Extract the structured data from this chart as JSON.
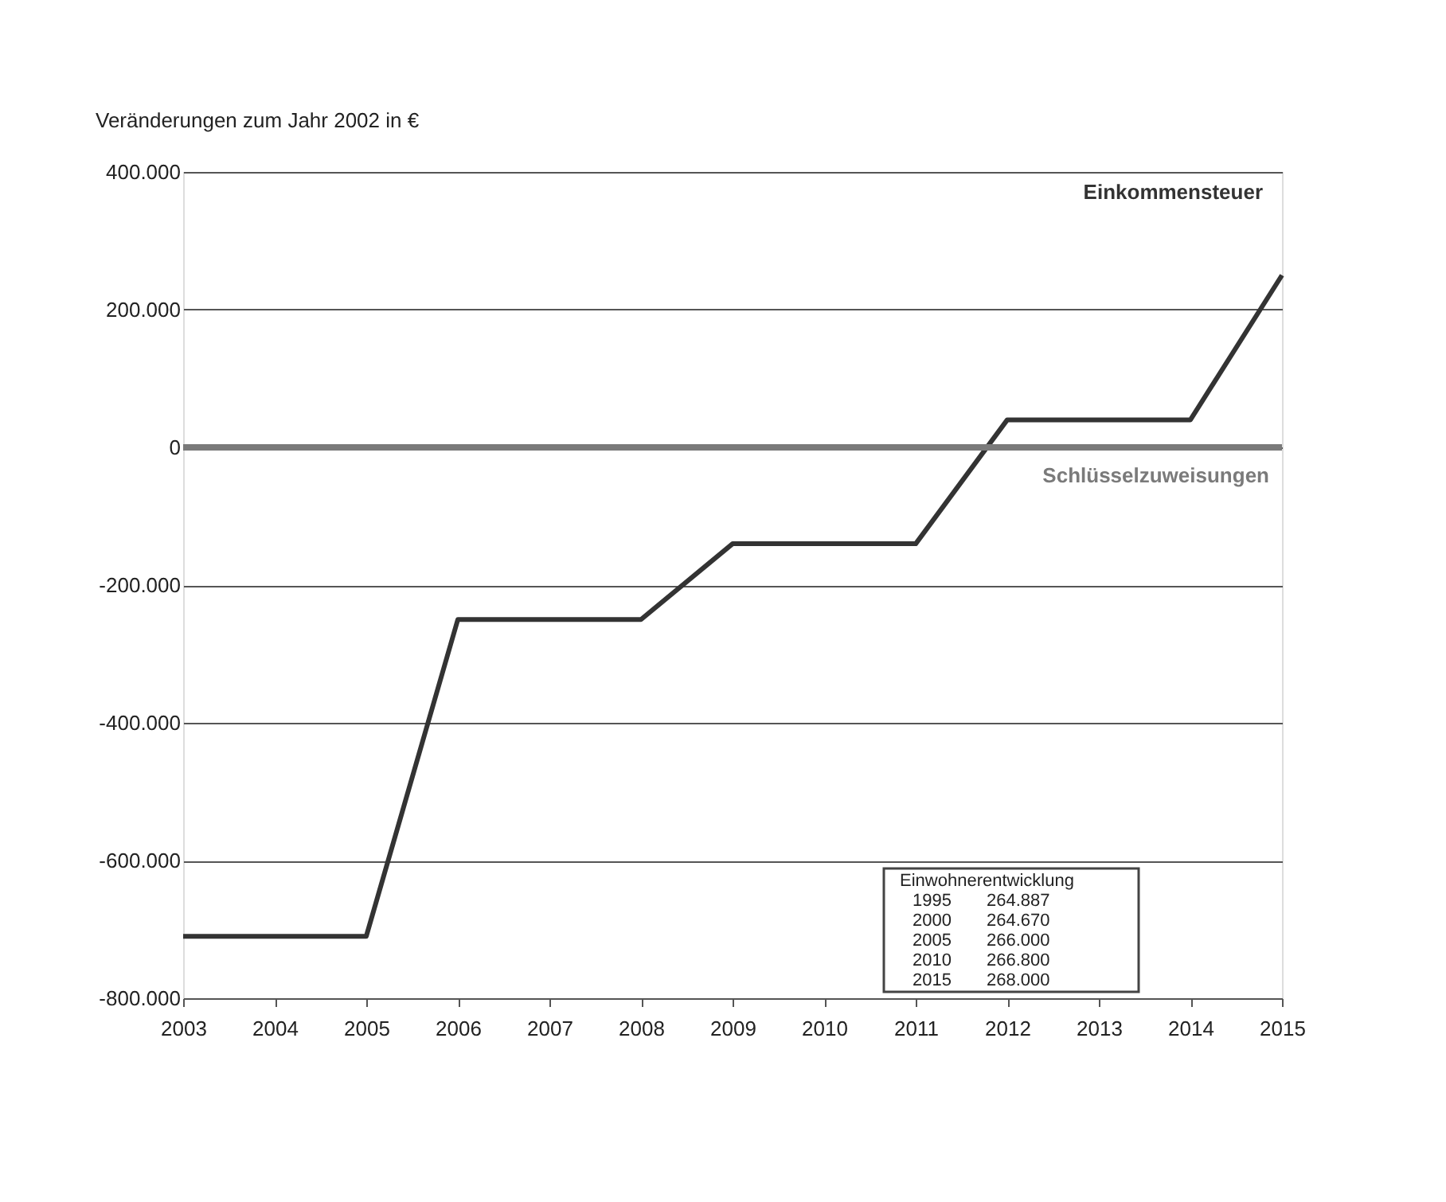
{
  "chart_data": {
    "type": "line",
    "ylabel": "Veränderungen zum Jahr 2002 in €",
    "categories": [
      "2003",
      "2004",
      "2005",
      "2006",
      "2007",
      "2008",
      "2009",
      "2010",
      "2011",
      "2012",
      "2013",
      "2014",
      "2015"
    ],
    "series": [
      {
        "name": "Einkommensteuer",
        "color": "#333333",
        "values": [
          -710000,
          -710000,
          -710000,
          -250000,
          -250000,
          -250000,
          -140000,
          -140000,
          -140000,
          40000,
          40000,
          40000,
          250000
        ]
      },
      {
        "name": "Schlüsselzuweisungen",
        "color": "#7a7a7a",
        "values": [
          0,
          0,
          0,
          0,
          0,
          0,
          0,
          0,
          0,
          0,
          0,
          0,
          0
        ]
      }
    ],
    "ylim": [
      -800000,
      400000
    ],
    "yticks": [
      {
        "value": -800000,
        "label": "-800.000"
      },
      {
        "value": -600000,
        "label": "-600.000"
      },
      {
        "value": -400000,
        "label": "-400.000"
      },
      {
        "value": -200000,
        "label": "-200.000"
      },
      {
        "value": 0,
        "label": "0"
      },
      {
        "value": 200000,
        "label": "200.000"
      },
      {
        "value": 400000,
        "label": "400.000"
      }
    ],
    "grid": "y",
    "marker": "none",
    "line_style": "solid",
    "annotations": [
      "Einwohnerentwicklung",
      "1995  264.887",
      "2000  264.670",
      "2005  266.000",
      "2010  266.800",
      "2015  268.000"
    ]
  }
}
